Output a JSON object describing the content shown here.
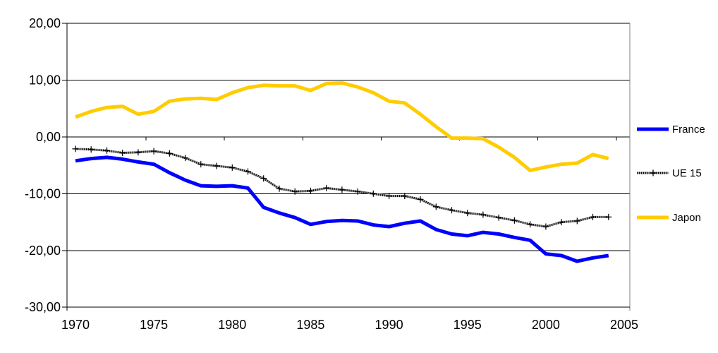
{
  "chart_data": {
    "type": "line",
    "title": "",
    "xlabel": "",
    "ylabel": "",
    "xlim": [
      1970,
      2005
    ],
    "ylim": [
      -30,
      20
    ],
    "grid": true,
    "legend_position": "right",
    "background": "#ffffff",
    "ytick_values": [
      20,
      10,
      0,
      -10,
      -20,
      -30
    ],
    "ytick_labels": [
      "20,00",
      "10,00",
      "0,00",
      "-10,00",
      "-20,00",
      "-30,00"
    ],
    "xtick_values": [
      1970,
      1975,
      1980,
      1985,
      1990,
      1995,
      2000,
      2005
    ],
    "xtick_labels": [
      "1970",
      "1975",
      "1980",
      "1985",
      "1990",
      "1995",
      "2000",
      "2005"
    ],
    "x": [
      1970,
      1971,
      1972,
      1973,
      1974,
      1975,
      1976,
      1977,
      1978,
      1979,
      1980,
      1981,
      1982,
      1983,
      1984,
      1985,
      1986,
      1987,
      1988,
      1989,
      1990,
      1991,
      1992,
      1993,
      1994,
      1995,
      1996,
      1997,
      1998,
      1999,
      2000,
      2001,
      2002,
      2003,
      2004
    ],
    "series": [
      {
        "name": "France",
        "color": "#0000ff",
        "style": "solid",
        "stroke_width": 5,
        "marker": "none",
        "values": [
          -4.2,
          -3.8,
          -3.6,
          -3.9,
          -4.4,
          -4.8,
          -6.3,
          -7.6,
          -8.6,
          -8.7,
          -8.6,
          -9.0,
          -12.4,
          -13.4,
          -14.2,
          -15.4,
          -14.9,
          -14.7,
          -14.8,
          -15.5,
          -15.8,
          -15.2,
          -14.8,
          -16.3,
          -17.1,
          -17.4,
          -16.8,
          -17.1,
          -17.7,
          -18.2,
          -20.6,
          -20.9,
          -21.9,
          -21.3,
          -20.9
        ]
      },
      {
        "name": "UE 15",
        "color": "#000000",
        "base_color": "#909090",
        "style": "dithered",
        "stroke_width": 3,
        "marker": "plus",
        "values": [
          -2.1,
          -2.2,
          -2.4,
          -2.8,
          -2.7,
          -2.5,
          -2.9,
          -3.7,
          -4.8,
          -5.1,
          -5.4,
          -6.1,
          -7.3,
          -9.1,
          -9.6,
          -9.5,
          -9.0,
          -9.3,
          -9.6,
          -10.0,
          -10.4,
          -10.4,
          -11.0,
          -12.3,
          -12.9,
          -13.4,
          -13.7,
          -14.2,
          -14.7,
          -15.4,
          -15.8,
          -15.0,
          -14.8,
          -14.1,
          -14.1
        ]
      },
      {
        "name": "Japon",
        "color": "#ffcc00",
        "style": "solid",
        "stroke_width": 5,
        "marker": "none",
        "values": [
          3.5,
          4.5,
          5.2,
          5.4,
          4.0,
          4.5,
          6.3,
          6.7,
          6.8,
          6.6,
          7.8,
          8.7,
          9.1,
          9.0,
          9.0,
          8.2,
          9.4,
          9.5,
          8.8,
          7.8,
          6.3,
          6.0,
          4.0,
          1.8,
          -0.2,
          -0.2,
          -0.3,
          -1.8,
          -3.6,
          -5.9,
          -5.3,
          -4.8,
          -4.6,
          -3.1,
          -3.8
        ]
      }
    ]
  },
  "legend": {
    "items": [
      {
        "label": "France"
      },
      {
        "label": "UE 15"
      },
      {
        "label": "Japon"
      }
    ]
  }
}
